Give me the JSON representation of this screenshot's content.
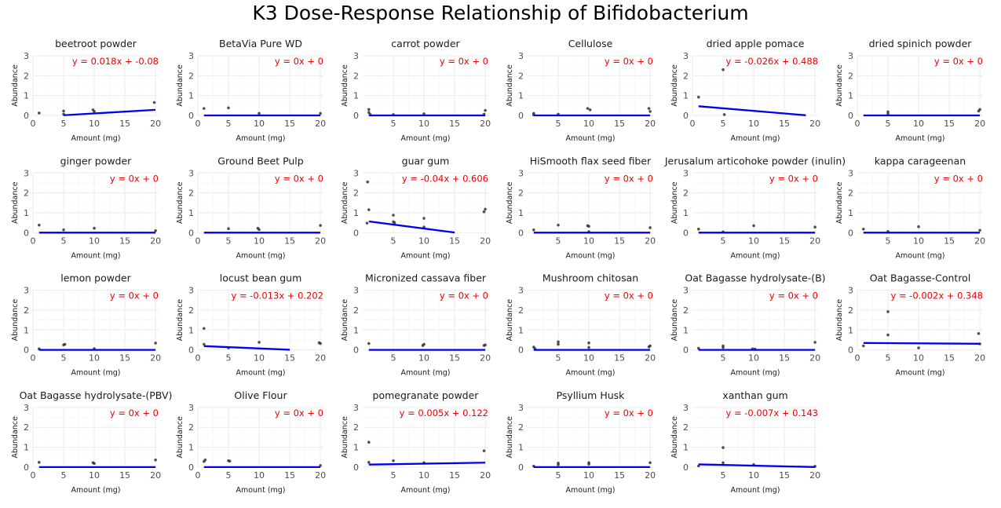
{
  "title": "K3 Dose-Response Relationship of Bifidobacterium",
  "xlabel": "Amount (mg)",
  "ylabel": "Abundance",
  "colors": {
    "points": "#333333",
    "fit_line": "#0000ee",
    "equation": "#ee0000",
    "grid": "#ebebeb"
  },
  "chart_data": [
    {
      "type": "scatter",
      "title": "beetroot powder",
      "equation": "y = 0.018x + -0.08",
      "slope": 0.018,
      "intercept": -0.08,
      "fit_range": [
        5,
        20
      ],
      "xlim": [
        0,
        20.5
      ],
      "ylim": [
        0,
        3
      ],
      "xticks": [
        0,
        5,
        10,
        15,
        20
      ],
      "yticks": [
        0,
        1,
        2,
        3
      ],
      "points": [
        [
          1,
          0.12
        ],
        [
          5,
          0.06
        ],
        [
          5,
          0.22
        ],
        [
          9.8,
          0.28
        ],
        [
          10,
          0.2
        ],
        [
          19.8,
          0.65
        ]
      ]
    },
    {
      "type": "scatter",
      "title": "BetaVia Pure WD",
      "equation": "y = 0x + 0",
      "slope": 0,
      "intercept": 0,
      "fit_range": [
        1,
        20
      ],
      "xlim": [
        0,
        20.5
      ],
      "ylim": [
        0,
        3
      ],
      "xticks": [
        0,
        5,
        10,
        15,
        20
      ],
      "yticks": [
        0,
        1,
        2,
        3
      ],
      "points": [
        [
          1,
          0.35
        ],
        [
          5,
          0.38
        ],
        [
          10,
          0.1
        ],
        [
          20,
          0.1
        ]
      ]
    },
    {
      "type": "scatter",
      "title": "carrot powder",
      "equation": "y = 0x + 0",
      "slope": 0,
      "intercept": 0,
      "fit_range": [
        1,
        20
      ],
      "xlim": [
        0,
        20.5
      ],
      "ylim": [
        0,
        3
      ],
      "xticks": [
        5,
        10,
        15,
        20
      ],
      "yticks": [
        0,
        1,
        2,
        3
      ],
      "points": [
        [
          1,
          0.3
        ],
        [
          1,
          0.15
        ],
        [
          1.2,
          0.05
        ],
        [
          5,
          0.04
        ],
        [
          10,
          0.08
        ],
        [
          19.8,
          0.06
        ],
        [
          20,
          0.25
        ]
      ]
    },
    {
      "type": "scatter",
      "title": "Cellulose",
      "equation": "y = 0x + 0",
      "slope": 0,
      "intercept": 0,
      "fit_range": [
        1,
        20
      ],
      "xlim": [
        0,
        20.5
      ],
      "ylim": [
        0,
        3
      ],
      "xticks": [
        5,
        10,
        15,
        20
      ],
      "yticks": [
        0,
        1,
        2,
        3
      ],
      "points": [
        [
          1,
          0.1
        ],
        [
          1,
          0.03
        ],
        [
          5,
          0.06
        ],
        [
          9.8,
          0.35
        ],
        [
          10.2,
          0.28
        ],
        [
          19.8,
          0.35
        ],
        [
          20,
          0.2
        ]
      ]
    },
    {
      "type": "scatter",
      "title": "dried apple pomace",
      "equation": "y = -0.026x + 0.488",
      "slope": -0.026,
      "intercept": 0.488,
      "fit_range": [
        1,
        18.5
      ],
      "xlim": [
        0,
        20.5
      ],
      "ylim": [
        0,
        3
      ],
      "xticks": [
        0,
        5,
        10,
        15,
        20
      ],
      "yticks": [
        0,
        1,
        2,
        3
      ],
      "points": [
        [
          1,
          0.92
        ],
        [
          5,
          2.3
        ],
        [
          5.2,
          0.04
        ]
      ]
    },
    {
      "type": "scatter",
      "title": "dried spinich powder",
      "equation": "y = 0x + 0",
      "slope": 0,
      "intercept": 0,
      "fit_range": [
        1,
        20
      ],
      "xlim": [
        0,
        20.5
      ],
      "ylim": [
        0,
        3
      ],
      "xticks": [
        0,
        5,
        10,
        15,
        20
      ],
      "yticks": [
        0,
        1,
        2,
        3
      ],
      "points": [
        [
          5,
          0.18
        ],
        [
          5,
          0.08
        ],
        [
          19.8,
          0.22
        ],
        [
          20,
          0.3
        ]
      ]
    },
    {
      "type": "scatter",
      "title": "ginger powder",
      "equation": "y = 0x + 0",
      "slope": 0,
      "intercept": 0,
      "fit_range": [
        1,
        20
      ],
      "xlim": [
        0,
        20.5
      ],
      "ylim": [
        0,
        3
      ],
      "xticks": [
        0,
        5,
        10,
        15,
        20
      ],
      "yticks": [
        0,
        1,
        2,
        3
      ],
      "points": [
        [
          1,
          0.38
        ],
        [
          5,
          0.14
        ],
        [
          10,
          0.22
        ],
        [
          20,
          0.1
        ]
      ]
    },
    {
      "type": "scatter",
      "title": "Ground Beet Pulp",
      "equation": "y = 0x + 0",
      "slope": 0,
      "intercept": 0,
      "fit_range": [
        1,
        20
      ],
      "xlim": [
        0,
        20.5
      ],
      "ylim": [
        0,
        3
      ],
      "xticks": [
        0,
        5,
        10,
        15,
        20
      ],
      "yticks": [
        0,
        1,
        2,
        3
      ],
      "points": [
        [
          5,
          0.2
        ],
        [
          9.8,
          0.22
        ],
        [
          10,
          0.15
        ],
        [
          20,
          0.36
        ]
      ]
    },
    {
      "type": "scatter",
      "title": "guar gum",
      "equation": "y = -0.04x + 0.606",
      "slope": -0.04,
      "intercept": 0.606,
      "fit_range": [
        1,
        15
      ],
      "xlim": [
        0,
        20.5
      ],
      "ylim": [
        0,
        3
      ],
      "xticks": [
        5,
        10,
        15,
        20
      ],
      "yticks": [
        0,
        1,
        2,
        3
      ],
      "points": [
        [
          0.8,
          2.55
        ],
        [
          1,
          1.15
        ],
        [
          0.7,
          0.48
        ],
        [
          5,
          0.88
        ],
        [
          5,
          0.55
        ],
        [
          5.2,
          0.5
        ],
        [
          10,
          0.72
        ],
        [
          10,
          0.28
        ],
        [
          19.8,
          1.05
        ],
        [
          20,
          1.18
        ]
      ]
    },
    {
      "type": "scatter",
      "title": "HiSmooth flax seed fiber",
      "equation": "y = 0x + 0",
      "slope": 0,
      "intercept": 0,
      "fit_range": [
        1,
        20
      ],
      "xlim": [
        0,
        20.5
      ],
      "ylim": [
        0,
        3
      ],
      "xticks": [
        5,
        10,
        15,
        20
      ],
      "yticks": [
        0,
        1,
        2,
        3
      ],
      "points": [
        [
          1,
          0.14
        ],
        [
          5,
          0.38
        ],
        [
          9.8,
          0.35
        ],
        [
          10,
          0.32
        ],
        [
          10,
          0.05
        ],
        [
          20,
          0.25
        ]
      ]
    },
    {
      "type": "scatter",
      "title": "Jerusalum articohoke powder (inulin)",
      "equation": "y = 0x + 0",
      "slope": 0,
      "intercept": 0,
      "fit_range": [
        1,
        20
      ],
      "xlim": [
        0,
        20.5
      ],
      "ylim": [
        0,
        3
      ],
      "xticks": [
        5,
        10,
        15,
        20
      ],
      "yticks": [
        0,
        1,
        2,
        3
      ],
      "points": [
        [
          1,
          0.18
        ],
        [
          5,
          0.04
        ],
        [
          10,
          0.35
        ],
        [
          20,
          0.28
        ]
      ]
    },
    {
      "type": "scatter",
      "title": "kappa carageenan",
      "equation": "y = 0x + 0",
      "slope": 0,
      "intercept": 0,
      "fit_range": [
        1,
        20
      ],
      "xlim": [
        0,
        20.5
      ],
      "ylim": [
        0,
        3
      ],
      "xticks": [
        5,
        10,
        15,
        20
      ],
      "yticks": [
        0,
        1,
        2,
        3
      ],
      "points": [
        [
          1,
          0.18
        ],
        [
          5,
          0.06
        ],
        [
          10,
          0.3
        ],
        [
          20,
          0.12
        ]
      ]
    },
    {
      "type": "scatter",
      "title": "lemon powder",
      "equation": "y = 0x + 0",
      "slope": 0,
      "intercept": 0,
      "fit_range": [
        1,
        20
      ],
      "xlim": [
        0,
        20.5
      ],
      "ylim": [
        0,
        3
      ],
      "xticks": [
        0,
        5,
        10,
        15,
        20
      ],
      "yticks": [
        0,
        1,
        2,
        3
      ],
      "points": [
        [
          1,
          0.05
        ],
        [
          5,
          0.25
        ],
        [
          5.2,
          0.28
        ],
        [
          10,
          0.06
        ],
        [
          20,
          0.34
        ]
      ]
    },
    {
      "type": "scatter",
      "title": "locust bean gum",
      "equation": "y = -0.013x + 0.202",
      "slope": -0.013,
      "intercept": 0.202,
      "fit_range": [
        1,
        15
      ],
      "xlim": [
        0,
        20.5
      ],
      "ylim": [
        0,
        3
      ],
      "xticks": [
        0,
        5,
        10,
        15,
        20
      ],
      "yticks": [
        0,
        1,
        2,
        3
      ],
      "points": [
        [
          1,
          1.08
        ],
        [
          1,
          0.28
        ],
        [
          5,
          0.1
        ],
        [
          10,
          0.38
        ],
        [
          19.8,
          0.36
        ],
        [
          20,
          0.32
        ]
      ]
    },
    {
      "type": "scatter",
      "title": "Micronized cassava fiber",
      "equation": "y = 0x + 0",
      "slope": 0,
      "intercept": 0,
      "fit_range": [
        1,
        20
      ],
      "xlim": [
        0,
        20.5
      ],
      "ylim": [
        0,
        3
      ],
      "xticks": [
        5,
        10,
        15,
        20
      ],
      "yticks": [
        0,
        1,
        2,
        3
      ],
      "points": [
        [
          1,
          0.32
        ],
        [
          9.8,
          0.22
        ],
        [
          10,
          0.28
        ],
        [
          19.8,
          0.22
        ],
        [
          20,
          0.25
        ]
      ]
    },
    {
      "type": "scatter",
      "title": "Mushroom chitosan",
      "equation": "y = 0x + 0",
      "slope": 0,
      "intercept": 0,
      "fit_range": [
        1,
        20
      ],
      "xlim": [
        0,
        20.5
      ],
      "ylim": [
        0,
        3
      ],
      "xticks": [
        5,
        10,
        15,
        20
      ],
      "yticks": [
        0,
        1,
        2,
        3
      ],
      "points": [
        [
          1,
          0.14
        ],
        [
          1.2,
          0.06
        ],
        [
          5,
          0.4
        ],
        [
          5,
          0.28
        ],
        [
          10,
          0.35
        ],
        [
          10,
          0.12
        ],
        [
          20,
          0.2
        ],
        [
          19.8,
          0.15
        ]
      ]
    },
    {
      "type": "scatter",
      "title": "Oat Bagasse hydrolysate-(B)",
      "equation": "y = 0x + 0",
      "slope": 0,
      "intercept": 0,
      "fit_range": [
        1,
        20
      ],
      "xlim": [
        0,
        20.5
      ],
      "ylim": [
        0,
        3
      ],
      "xticks": [
        5,
        10,
        15,
        20
      ],
      "yticks": [
        0,
        1,
        2,
        3
      ],
      "points": [
        [
          1,
          0.08
        ],
        [
          5,
          0.2
        ],
        [
          5,
          0.12
        ],
        [
          9.8,
          0.05
        ],
        [
          10.2,
          0.04
        ],
        [
          20,
          0.38
        ]
      ]
    },
    {
      "type": "scatter",
      "title": "Oat Bagasse-Control",
      "equation": "y = -0.002x + 0.348",
      "slope": -0.002,
      "intercept": 0.348,
      "fit_range": [
        1,
        20
      ],
      "xlim": [
        0,
        20.5
      ],
      "ylim": [
        0,
        3
      ],
      "xticks": [
        0,
        5,
        10,
        15,
        20
      ],
      "yticks": [
        0,
        1,
        2,
        3
      ],
      "points": [
        [
          1,
          0.2
        ],
        [
          5,
          1.92
        ],
        [
          5,
          0.75
        ],
        [
          10,
          0.1
        ],
        [
          19.8,
          0.82
        ],
        [
          20,
          0.3
        ]
      ]
    },
    {
      "type": "scatter",
      "title": "Oat Bagasse hydrolysate-(PBV)",
      "equation": "y = 0x + 0",
      "slope": 0,
      "intercept": 0,
      "fit_range": [
        1,
        20
      ],
      "xlim": [
        0,
        20.5
      ],
      "ylim": [
        0,
        3
      ],
      "xticks": [
        0,
        5,
        10,
        15,
        20
      ],
      "yticks": [
        0,
        1,
        2,
        3
      ],
      "points": [
        [
          1,
          0.24
        ],
        [
          9.8,
          0.22
        ],
        [
          10,
          0.18
        ],
        [
          20,
          0.36
        ]
      ]
    },
    {
      "type": "scatter",
      "title": "Olive Flour",
      "equation": "y = 0x + 0",
      "slope": 0,
      "intercept": 0,
      "fit_range": [
        1,
        20
      ],
      "xlim": [
        0,
        20.5
      ],
      "ylim": [
        0,
        3
      ],
      "xticks": [
        0,
        5,
        10,
        15,
        20
      ],
      "yticks": [
        0,
        1,
        2,
        3
      ],
      "points": [
        [
          1,
          0.28
        ],
        [
          1.2,
          0.36
        ],
        [
          5,
          0.32
        ],
        [
          5.2,
          0.3
        ],
        [
          20,
          0.08
        ]
      ]
    },
    {
      "type": "scatter",
      "title": "pomegranate powder",
      "equation": "y = 0.005x + 0.122",
      "slope": 0.005,
      "intercept": 0.122,
      "fit_range": [
        1,
        20
      ],
      "xlim": [
        0,
        20.5
      ],
      "ylim": [
        0,
        3
      ],
      "xticks": [
        5,
        10,
        15,
        20
      ],
      "yticks": [
        0,
        1,
        2,
        3
      ],
      "points": [
        [
          1,
          1.25
        ],
        [
          1,
          0.24
        ],
        [
          5,
          0.32
        ],
        [
          10,
          0.22
        ],
        [
          19.8,
          0.82
        ]
      ]
    },
    {
      "type": "scatter",
      "title": "Psyllium Husk",
      "equation": "y = 0x + 0",
      "slope": 0,
      "intercept": 0,
      "fit_range": [
        1,
        20
      ],
      "xlim": [
        0,
        20.5
      ],
      "ylim": [
        0,
        3
      ],
      "xticks": [
        5,
        10,
        15,
        20
      ],
      "yticks": [
        0,
        1,
        2,
        3
      ],
      "points": [
        [
          1,
          0.05
        ],
        [
          5,
          0.2
        ],
        [
          5,
          0.12
        ],
        [
          10,
          0.22
        ],
        [
          10,
          0.15
        ],
        [
          20,
          0.22
        ]
      ]
    },
    {
      "type": "scatter",
      "title": "xanthan gum",
      "equation": "y = -0.007x + 0.143",
      "slope": -0.007,
      "intercept": 0.143,
      "fit_range": [
        1,
        20
      ],
      "xlim": [
        0,
        20.5
      ],
      "ylim": [
        0,
        3
      ],
      "xticks": [
        5,
        10,
        15,
        20
      ],
      "yticks": [
        0,
        1,
        2,
        3
      ],
      "points": [
        [
          1,
          0.06
        ],
        [
          5,
          0.98
        ],
        [
          5,
          0.22
        ],
        [
          10,
          0.12
        ],
        [
          20,
          0.04
        ]
      ]
    }
  ]
}
